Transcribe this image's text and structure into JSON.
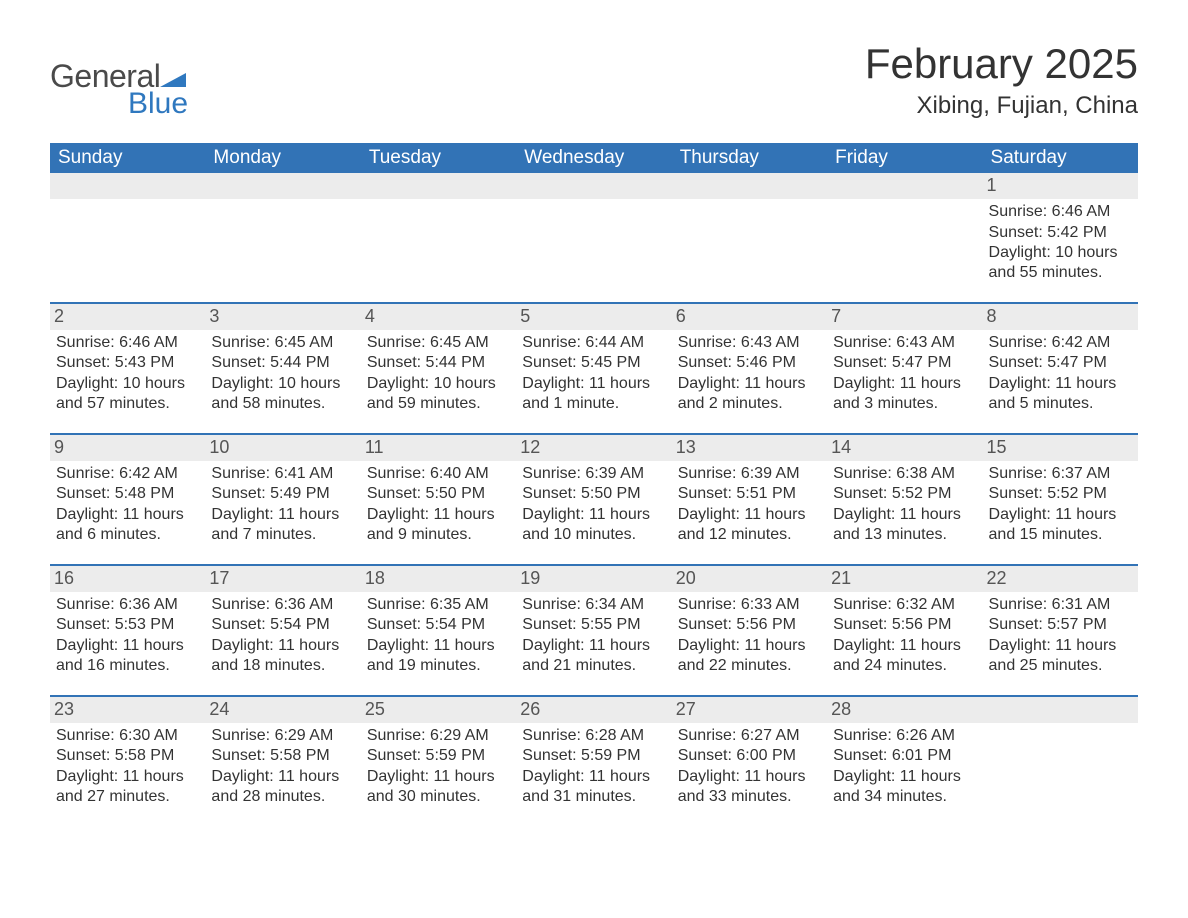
{
  "brand": {
    "word1": "General",
    "word2": "Blue",
    "flag_color": "#2f78bf",
    "word1_color": "#4a4a4a",
    "word2_color": "#2f78bf"
  },
  "title": "February 2025",
  "location": "Xibing, Fujian, China",
  "header_bg": "#3273b6",
  "header_text_color": "#ffffff",
  "daynum_bg": "#ececec",
  "border_color": "#3273b6",
  "weekdays": [
    "Sunday",
    "Monday",
    "Tuesday",
    "Wednesday",
    "Thursday",
    "Friday",
    "Saturday"
  ],
  "weeks": [
    [
      {
        "day": "",
        "sunrise": "",
        "sunset": "",
        "daylight": ""
      },
      {
        "day": "",
        "sunrise": "",
        "sunset": "",
        "daylight": ""
      },
      {
        "day": "",
        "sunrise": "",
        "sunset": "",
        "daylight": ""
      },
      {
        "day": "",
        "sunrise": "",
        "sunset": "",
        "daylight": ""
      },
      {
        "day": "",
        "sunrise": "",
        "sunset": "",
        "daylight": ""
      },
      {
        "day": "",
        "sunrise": "",
        "sunset": "",
        "daylight": ""
      },
      {
        "day": "1",
        "sunrise": "Sunrise: 6:46 AM",
        "sunset": "Sunset: 5:42 PM",
        "daylight": "Daylight: 10 hours and 55 minutes."
      }
    ],
    [
      {
        "day": "2",
        "sunrise": "Sunrise: 6:46 AM",
        "sunset": "Sunset: 5:43 PM",
        "daylight": "Daylight: 10 hours and 57 minutes."
      },
      {
        "day": "3",
        "sunrise": "Sunrise: 6:45 AM",
        "sunset": "Sunset: 5:44 PM",
        "daylight": "Daylight: 10 hours and 58 minutes."
      },
      {
        "day": "4",
        "sunrise": "Sunrise: 6:45 AM",
        "sunset": "Sunset: 5:44 PM",
        "daylight": "Daylight: 10 hours and 59 minutes."
      },
      {
        "day": "5",
        "sunrise": "Sunrise: 6:44 AM",
        "sunset": "Sunset: 5:45 PM",
        "daylight": "Daylight: 11 hours and 1 minute."
      },
      {
        "day": "6",
        "sunrise": "Sunrise: 6:43 AM",
        "sunset": "Sunset: 5:46 PM",
        "daylight": "Daylight: 11 hours and 2 minutes."
      },
      {
        "day": "7",
        "sunrise": "Sunrise: 6:43 AM",
        "sunset": "Sunset: 5:47 PM",
        "daylight": "Daylight: 11 hours and 3 minutes."
      },
      {
        "day": "8",
        "sunrise": "Sunrise: 6:42 AM",
        "sunset": "Sunset: 5:47 PM",
        "daylight": "Daylight: 11 hours and 5 minutes."
      }
    ],
    [
      {
        "day": "9",
        "sunrise": "Sunrise: 6:42 AM",
        "sunset": "Sunset: 5:48 PM",
        "daylight": "Daylight: 11 hours and 6 minutes."
      },
      {
        "day": "10",
        "sunrise": "Sunrise: 6:41 AM",
        "sunset": "Sunset: 5:49 PM",
        "daylight": "Daylight: 11 hours and 7 minutes."
      },
      {
        "day": "11",
        "sunrise": "Sunrise: 6:40 AM",
        "sunset": "Sunset: 5:50 PM",
        "daylight": "Daylight: 11 hours and 9 minutes."
      },
      {
        "day": "12",
        "sunrise": "Sunrise: 6:39 AM",
        "sunset": "Sunset: 5:50 PM",
        "daylight": "Daylight: 11 hours and 10 minutes."
      },
      {
        "day": "13",
        "sunrise": "Sunrise: 6:39 AM",
        "sunset": "Sunset: 5:51 PM",
        "daylight": "Daylight: 11 hours and 12 minutes."
      },
      {
        "day": "14",
        "sunrise": "Sunrise: 6:38 AM",
        "sunset": "Sunset: 5:52 PM",
        "daylight": "Daylight: 11 hours and 13 minutes."
      },
      {
        "day": "15",
        "sunrise": "Sunrise: 6:37 AM",
        "sunset": "Sunset: 5:52 PM",
        "daylight": "Daylight: 11 hours and 15 minutes."
      }
    ],
    [
      {
        "day": "16",
        "sunrise": "Sunrise: 6:36 AM",
        "sunset": "Sunset: 5:53 PM",
        "daylight": "Daylight: 11 hours and 16 minutes."
      },
      {
        "day": "17",
        "sunrise": "Sunrise: 6:36 AM",
        "sunset": "Sunset: 5:54 PM",
        "daylight": "Daylight: 11 hours and 18 minutes."
      },
      {
        "day": "18",
        "sunrise": "Sunrise: 6:35 AM",
        "sunset": "Sunset: 5:54 PM",
        "daylight": "Daylight: 11 hours and 19 minutes."
      },
      {
        "day": "19",
        "sunrise": "Sunrise: 6:34 AM",
        "sunset": "Sunset: 5:55 PM",
        "daylight": "Daylight: 11 hours and 21 minutes."
      },
      {
        "day": "20",
        "sunrise": "Sunrise: 6:33 AM",
        "sunset": "Sunset: 5:56 PM",
        "daylight": "Daylight: 11 hours and 22 minutes."
      },
      {
        "day": "21",
        "sunrise": "Sunrise: 6:32 AM",
        "sunset": "Sunset: 5:56 PM",
        "daylight": "Daylight: 11 hours and 24 minutes."
      },
      {
        "day": "22",
        "sunrise": "Sunrise: 6:31 AM",
        "sunset": "Sunset: 5:57 PM",
        "daylight": "Daylight: 11 hours and 25 minutes."
      }
    ],
    [
      {
        "day": "23",
        "sunrise": "Sunrise: 6:30 AM",
        "sunset": "Sunset: 5:58 PM",
        "daylight": "Daylight: 11 hours and 27 minutes."
      },
      {
        "day": "24",
        "sunrise": "Sunrise: 6:29 AM",
        "sunset": "Sunset: 5:58 PM",
        "daylight": "Daylight: 11 hours and 28 minutes."
      },
      {
        "day": "25",
        "sunrise": "Sunrise: 6:29 AM",
        "sunset": "Sunset: 5:59 PM",
        "daylight": "Daylight: 11 hours and 30 minutes."
      },
      {
        "day": "26",
        "sunrise": "Sunrise: 6:28 AM",
        "sunset": "Sunset: 5:59 PM",
        "daylight": "Daylight: 11 hours and 31 minutes."
      },
      {
        "day": "27",
        "sunrise": "Sunrise: 6:27 AM",
        "sunset": "Sunset: 6:00 PM",
        "daylight": "Daylight: 11 hours and 33 minutes."
      },
      {
        "day": "28",
        "sunrise": "Sunrise: 6:26 AM",
        "sunset": "Sunset: 6:01 PM",
        "daylight": "Daylight: 11 hours and 34 minutes."
      },
      {
        "day": "",
        "sunrise": "",
        "sunset": "",
        "daylight": ""
      }
    ]
  ]
}
